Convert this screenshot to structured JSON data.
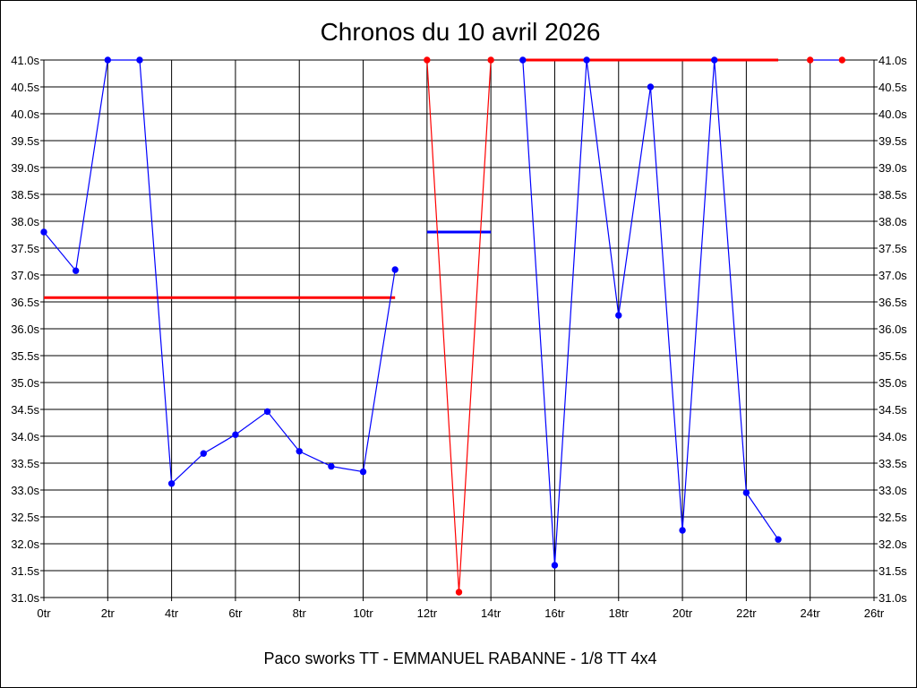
{
  "chart_data": {
    "type": "line",
    "title": "Chronos du 10 avril 2026",
    "subtitle": "Paco sworks TT - EMMANUEL RABANNE - 1/8 TT 4x4",
    "xlabel": "",
    "ylabel": "",
    "xlim": [
      0,
      26
    ],
    "ylim": [
      31.0,
      41.0
    ],
    "x_ticks": [
      0,
      2,
      4,
      6,
      8,
      10,
      12,
      14,
      16,
      18,
      20,
      22,
      24,
      26
    ],
    "x_tick_labels": [
      "0tr",
      "2tr",
      "4tr",
      "6tr",
      "8tr",
      "10tr",
      "12tr",
      "14tr",
      "16tr",
      "18tr",
      "20tr",
      "22tr",
      "24tr",
      "26tr"
    ],
    "y_ticks": [
      31.0,
      31.5,
      32.0,
      32.5,
      33.0,
      33.5,
      34.0,
      34.5,
      35.0,
      35.5,
      36.0,
      36.5,
      37.0,
      37.5,
      38.0,
      38.5,
      39.0,
      39.5,
      40.0,
      40.5,
      41.0
    ],
    "y_tick_labels": [
      "31.0s",
      "31.5s",
      "32.0s",
      "32.5s",
      "33.0s",
      "33.5s",
      "34.0s",
      "34.5s",
      "35.0s",
      "35.5s",
      "36.0s",
      "36.5s",
      "37.0s",
      "37.5s",
      "38.0s",
      "38.5s",
      "39.0s",
      "39.5s",
      "40.0s",
      "40.5s",
      "41.0s"
    ],
    "grid": true,
    "colors": {
      "blue": "#0000ff",
      "red": "#ff0000",
      "grid": "#000000"
    },
    "series": [
      {
        "color": "#0000ff",
        "x": [
          0,
          1,
          2,
          3,
          4,
          5,
          6,
          7,
          8,
          9,
          10,
          11
        ],
        "y": [
          37.8,
          37.08,
          41.0,
          41.0,
          33.12,
          33.68,
          34.03,
          34.46,
          33.72,
          33.44,
          33.34,
          37.1
        ]
      },
      {
        "color": "#ff0000",
        "x": [
          12,
          13,
          14
        ],
        "y": [
          41.0,
          31.1,
          41.0
        ]
      },
      {
        "color": "#0000ff",
        "x": [
          15,
          16,
          17,
          18,
          19,
          20,
          21,
          22,
          23
        ],
        "y": [
          41.0,
          31.6,
          41.0,
          36.25,
          40.5,
          32.25,
          41.0,
          32.95,
          32.08
        ]
      },
      {
        "color": "#0000ff",
        "x": [
          24,
          25
        ],
        "y": [
          41.0,
          41.0
        ]
      }
    ],
    "reference_lines": [
      {
        "color": "#ff0000",
        "x": [
          0,
          11
        ],
        "y": 36.58
      },
      {
        "color": "#0000ff",
        "x": [
          12,
          14
        ],
        "y": 37.8
      },
      {
        "color": "#ff0000",
        "x": [
          15,
          23
        ],
        "y": 41.0
      }
    ],
    "marker_colors": [
      {
        "x": 24,
        "color": "#ff0000"
      },
      {
        "x": 25,
        "color": "#ff0000"
      }
    ]
  }
}
